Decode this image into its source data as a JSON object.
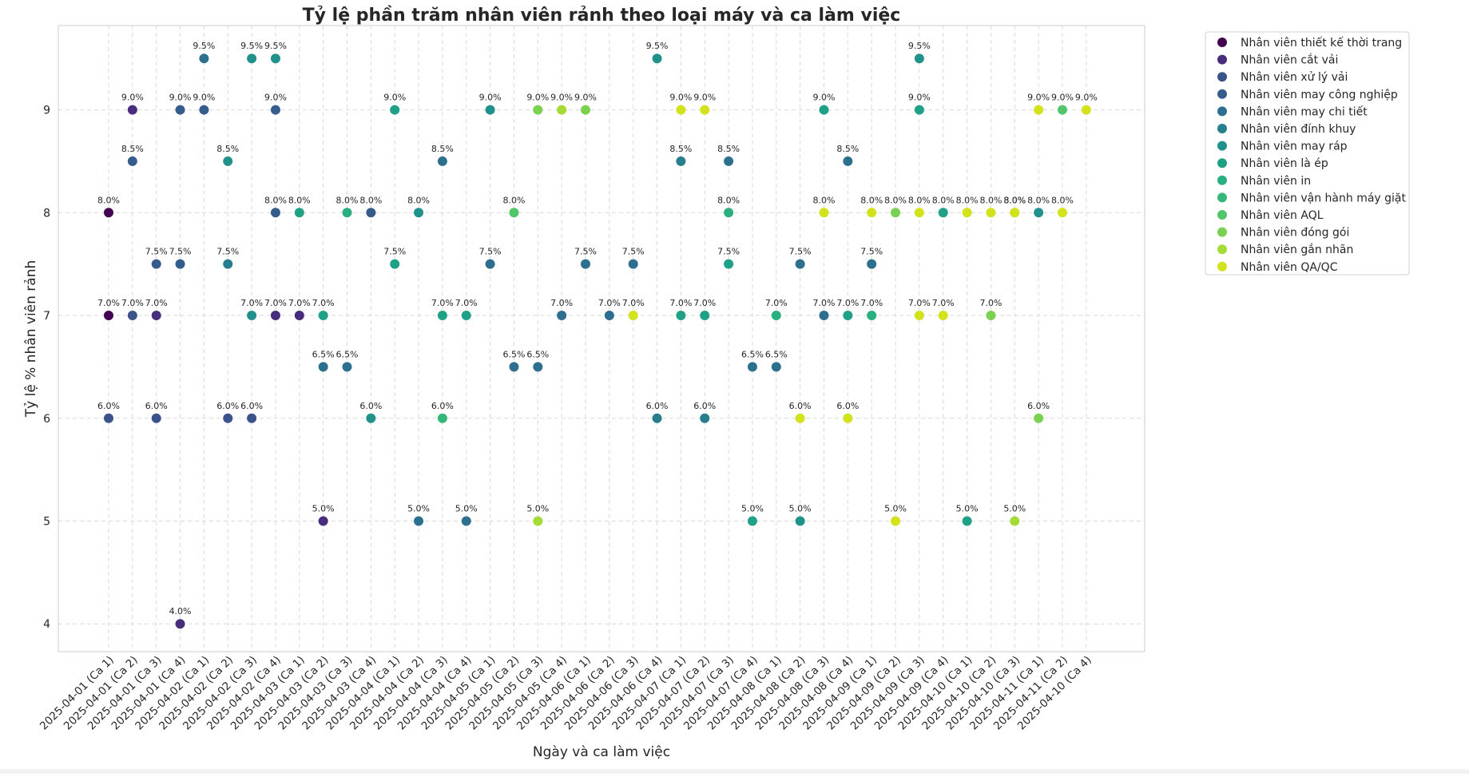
{
  "chart_data": {
    "type": "scatter",
    "title": "Tỷ lệ phần trăm nhân viên rảnh theo loại máy và ca làm việc",
    "xlabel": "Ngày và ca làm việc",
    "ylabel": "Tỷ lệ % nhân viên rảnh",
    "ylim": [
      3.73,
      9.82
    ],
    "yticks": [
      4,
      5,
      6,
      7,
      8,
      9
    ],
    "grid": true,
    "legend_position": "outside-top-right",
    "categories": [
      "2025-04-01 (Ca 1)",
      "2025-04-01 (Ca 2)",
      "2025-04-01 (Ca 3)",
      "2025-04-01 (Ca 4)",
      "2025-04-02 (Ca 1)",
      "2025-04-02 (Ca 2)",
      "2025-04-02 (Ca 3)",
      "2025-04-02 (Ca 4)",
      "2025-04-03 (Ca 1)",
      "2025-04-03 (Ca 2)",
      "2025-04-03 (Ca 3)",
      "2025-04-03 (Ca 4)",
      "2025-04-04 (Ca 1)",
      "2025-04-04 (Ca 2)",
      "2025-04-04 (Ca 3)",
      "2025-04-04 (Ca 4)",
      "2025-04-05 (Ca 1)",
      "2025-04-05 (Ca 2)",
      "2025-04-05 (Ca 3)",
      "2025-04-05 (Ca 4)",
      "2025-04-06 (Ca 1)",
      "2025-04-06 (Ca 2)",
      "2025-04-06 (Ca 3)",
      "2025-04-06 (Ca 4)",
      "2025-04-07 (Ca 1)",
      "2025-04-07 (Ca 2)",
      "2025-04-07 (Ca 3)",
      "2025-04-07 (Ca 4)",
      "2025-04-08 (Ca 1)",
      "2025-04-08 (Ca 2)",
      "2025-04-08 (Ca 3)",
      "2025-04-08 (Ca 4)",
      "2025-04-09 (Ca 1)",
      "2025-04-09 (Ca 2)",
      "2025-04-09 (Ca 3)",
      "2025-04-09 (Ca 4)",
      "2025-04-10 (Ca 1)",
      "2025-04-10 (Ca 2)",
      "2025-04-10 (Ca 3)",
      "2025-04-11 (Ca 1)",
      "2025-04-11 (Ca 2)",
      "2025-04-10 (Ca 4)"
    ],
    "series": [
      {
        "name": "Nhân viên thiết kế thời trang",
        "color": "#440154",
        "points": [
          [
            0,
            8.0
          ],
          [
            0,
            7.0
          ]
        ]
      },
      {
        "name": "Nhân viên cắt vải",
        "color": "#472d7b",
        "points": [
          [
            1,
            9.0
          ],
          [
            2,
            7.0
          ],
          [
            3,
            4.0
          ],
          [
            7,
            7.0
          ],
          [
            8,
            7.0
          ],
          [
            9,
            5.0
          ]
        ]
      },
      {
        "name": "Nhân viên xử lý vải",
        "color": "#3b528b",
        "points": [
          [
            0,
            6.0
          ],
          [
            1,
            7.0
          ],
          [
            2,
            6.0
          ],
          [
            5,
            6.0
          ],
          [
            6,
            6.0
          ]
        ]
      },
      {
        "name": "Nhân viên may công nghiệp",
        "color": "#365c8d",
        "points": [
          [
            1,
            8.5
          ],
          [
            2,
            7.5
          ],
          [
            3,
            7.5
          ],
          [
            3,
            9.0
          ],
          [
            4,
            9.0
          ],
          [
            7,
            9.0
          ],
          [
            7,
            8.0
          ],
          [
            11,
            8.0
          ]
        ]
      },
      {
        "name": "Nhân viên may chi tiết",
        "color": "#2c6f8e",
        "points": [
          [
            4,
            9.5
          ],
          [
            9,
            6.5
          ],
          [
            10,
            6.5
          ],
          [
            13,
            5.0
          ],
          [
            14,
            8.5
          ],
          [
            15,
            5.0
          ],
          [
            16,
            7.5
          ],
          [
            17,
            6.5
          ],
          [
            18,
            6.5
          ],
          [
            19,
            7.0
          ],
          [
            20,
            7.5
          ],
          [
            21,
            7.0
          ],
          [
            22,
            7.5
          ],
          [
            26,
            8.5
          ],
          [
            27,
            6.5
          ],
          [
            28,
            6.5
          ],
          [
            29,
            7.5
          ],
          [
            30,
            7.0
          ],
          [
            31,
            8.5
          ],
          [
            32,
            7.5
          ]
        ]
      },
      {
        "name": "Nhân viên đính khuy",
        "color": "#277f8e",
        "points": [
          [
            5,
            7.5
          ],
          [
            23,
            6.0
          ],
          [
            24,
            8.5
          ],
          [
            25,
            6.0
          ]
        ]
      },
      {
        "name": "Nhân viên may ráp",
        "color": "#21918c",
        "points": [
          [
            5,
            8.5
          ],
          [
            6,
            9.5
          ],
          [
            6,
            7.0
          ],
          [
            7,
            9.5
          ],
          [
            11,
            6.0
          ],
          [
            13,
            8.0
          ],
          [
            16,
            9.0
          ],
          [
            23,
            9.5
          ],
          [
            29,
            5.0
          ],
          [
            34,
            9.5
          ],
          [
            39,
            8.0
          ]
        ]
      },
      {
        "name": "Nhân viên là ép",
        "color": "#1fa187",
        "points": [
          [
            8,
            8.0
          ],
          [
            9,
            7.0
          ],
          [
            12,
            9.0
          ],
          [
            12,
            7.5
          ],
          [
            14,
            7.0
          ],
          [
            15,
            7.0
          ],
          [
            24,
            7.0
          ],
          [
            25,
            7.0
          ],
          [
            26,
            7.5
          ],
          [
            27,
            5.0
          ],
          [
            30,
            9.0
          ],
          [
            31,
            7.0
          ],
          [
            34,
            9.0
          ],
          [
            35,
            8.0
          ],
          [
            36,
            5.0
          ]
        ]
      },
      {
        "name": "Nhân viên in",
        "color": "#2ab07f",
        "points": [
          [
            10,
            8.0
          ],
          [
            26,
            8.0
          ],
          [
            28,
            7.0
          ],
          [
            32,
            7.0
          ]
        ]
      },
      {
        "name": "Nhân viên vận hành máy giặt",
        "color": "#35b779",
        "points": [
          [
            14,
            6.0
          ]
        ]
      },
      {
        "name": "Nhân viên AQL",
        "color": "#52c569",
        "points": [
          [
            17,
            8.0
          ],
          [
            40,
            9.0
          ]
        ]
      },
      {
        "name": "Nhân viên đóng gói",
        "color": "#7ad151",
        "points": [
          [
            18,
            9.0
          ],
          [
            20,
            9.0
          ],
          [
            33,
            8.0
          ],
          [
            37,
            7.0
          ],
          [
            38,
            8.0
          ],
          [
            39,
            6.0
          ]
        ]
      },
      {
        "name": "Nhân viên gắn nhãn",
        "color": "#a5db36",
        "points": [
          [
            18,
            5.0
          ],
          [
            19,
            9.0
          ],
          [
            38,
            5.0
          ]
        ]
      },
      {
        "name": "Nhân viên QA/QC",
        "color": "#d2e21b",
        "points": [
          [
            22,
            7.0
          ],
          [
            24,
            9.0
          ],
          [
            25,
            9.0
          ],
          [
            29,
            6.0
          ],
          [
            30,
            8.0
          ],
          [
            31,
            6.0
          ],
          [
            32,
            8.0
          ],
          [
            33,
            5.0
          ],
          [
            34,
            8.0
          ],
          [
            34,
            7.0
          ],
          [
            35,
            7.0
          ],
          [
            36,
            8.0
          ],
          [
            37,
            8.0
          ],
          [
            38,
            8.0
          ],
          [
            39,
            9.0
          ],
          [
            40,
            8.0
          ],
          [
            41,
            9.0
          ]
        ]
      }
    ]
  }
}
